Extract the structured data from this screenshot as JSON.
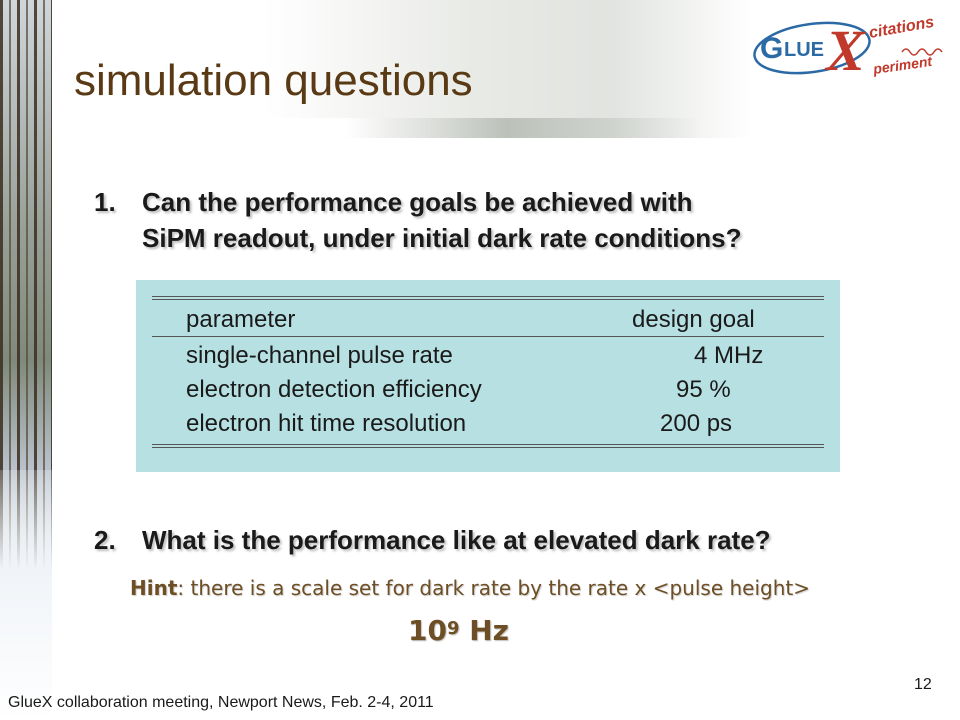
{
  "slide": {
    "title": "simulation questions",
    "logo_text": {
      "g": "G",
      "lue": "LUE",
      "x": "X",
      "citations": "citations",
      "periment": "periment"
    },
    "questions": [
      {
        "number": "1.",
        "line1": "Can the performance goals be achieved with",
        "line2": "SiPM readout, under initial dark rate conditions?"
      },
      {
        "number": "2.",
        "line1": "What is the performance like at elevated dark rate?"
      }
    ],
    "table": {
      "headers": [
        "parameter",
        "design goal"
      ],
      "rows": [
        {
          "parameter": "single-channel pulse rate",
          "goal": "4 MHz"
        },
        {
          "parameter": "electron detection efficiency",
          "goal": "95 %"
        },
        {
          "parameter": "electron hit time resolution",
          "goal": "200 ps"
        }
      ]
    },
    "hint": {
      "label": "Hint",
      "text": ": there is a scale set for dark rate by the rate x <pulse height>"
    },
    "rate": {
      "base": "10",
      "exponent": "9",
      "unit": "Hz"
    },
    "footer": "GlueX collaboration meeting, Newport News, Feb. 2-4, 2011",
    "page_number": "12"
  },
  "colors": {
    "title": "#5a3a14",
    "panel": "#b7e0e3",
    "hint": "#6e4e25",
    "logo_red": "#c0392b",
    "logo_blue": "#2c6aa6"
  }
}
